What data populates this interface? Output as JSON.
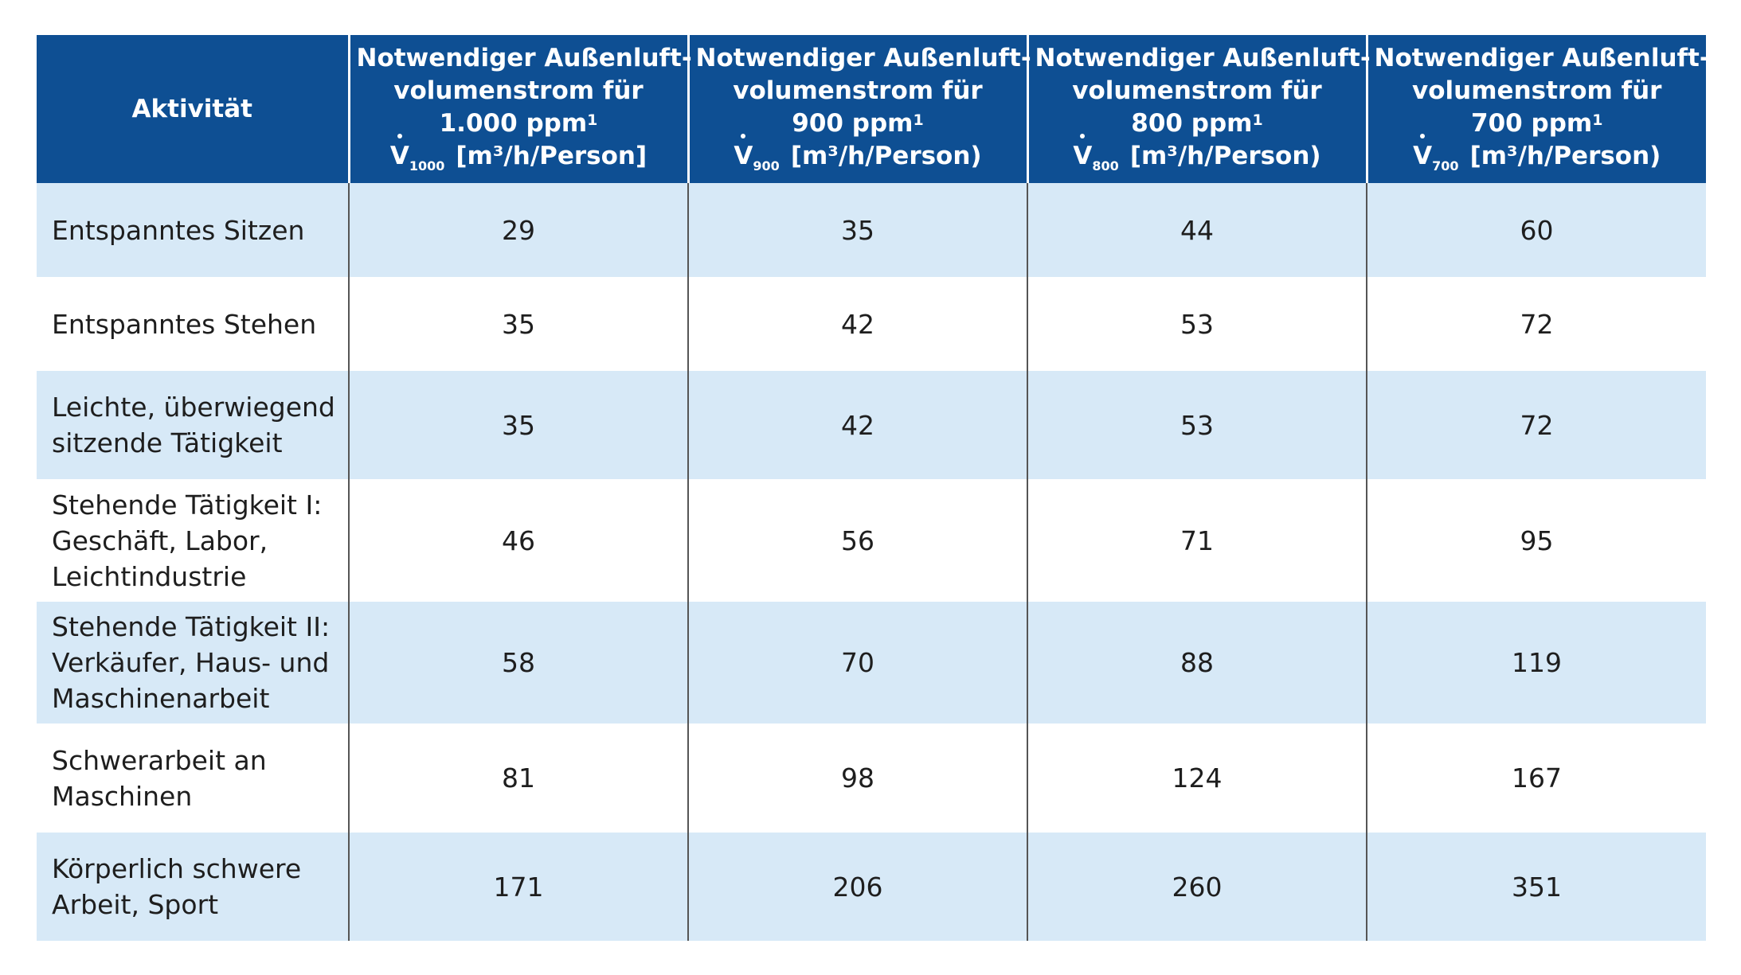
{
  "table": {
    "header": {
      "activity": "Aktivität",
      "columns": [
        {
          "line1": "Notwendiger Außenluft-",
          "line2": "volumenstrom für",
          "ppm": "1.000 ppm",
          "footnote": "1",
          "symbol": "V",
          "subscript": "1000",
          "unit": "[m³/h/Person]"
        },
        {
          "line1": "Notwendiger Außenluft-",
          "line2": "volumenstrom für",
          "ppm": "900 ppm",
          "footnote": "1",
          "symbol": "V",
          "subscript": "900",
          "unit": "[m³/h/Person)"
        },
        {
          "line1": "Notwendiger Außenluft-",
          "line2": "volumenstrom für",
          "ppm": "800 ppm",
          "footnote": "1",
          "symbol": "V",
          "subscript": "800",
          "unit": "[m³/h/Person)"
        },
        {
          "line1": "Notwendiger Außenluft-",
          "line2": "volumenstrom für",
          "ppm": "700 ppm",
          "footnote": "1",
          "symbol": "V",
          "subscript": "700",
          "unit": "[m³/h/Person)"
        }
      ]
    },
    "rows": [
      {
        "activity_lines": [
          "Entspanntes Sitzen"
        ],
        "values": [
          "29",
          "35",
          "44",
          "60"
        ]
      },
      {
        "activity_lines": [
          "Entspanntes Stehen"
        ],
        "values": [
          "35",
          "42",
          "53",
          "72"
        ]
      },
      {
        "activity_lines": [
          "Leichte, überwiegend",
          "sitzende Tätigkeit"
        ],
        "values": [
          "35",
          "42",
          "53",
          "72"
        ]
      },
      {
        "activity_lines": [
          "Stehende Tätigkeit I:",
          "Geschäft, Labor,",
          "Leichtindustrie"
        ],
        "values": [
          "46",
          "56",
          "71",
          "95"
        ]
      },
      {
        "activity_lines": [
          "Stehende Tätigkeit II:",
          "Verkäufer, Haus- und",
          "Maschinenarbeit"
        ],
        "values": [
          "58",
          "70",
          "88",
          "119"
        ]
      },
      {
        "activity_lines": [
          "Schwerarbeit an",
          "Maschinen"
        ],
        "values": [
          "81",
          "98",
          "124",
          "167"
        ]
      },
      {
        "activity_lines": [
          "Körperlich schwere",
          "Arbeit, Sport"
        ],
        "values": [
          "171",
          "206",
          "260",
          "351"
        ]
      }
    ]
  },
  "colors": {
    "header_bg": "#0e4f93",
    "stripe_bg": "#d7e9f7"
  }
}
